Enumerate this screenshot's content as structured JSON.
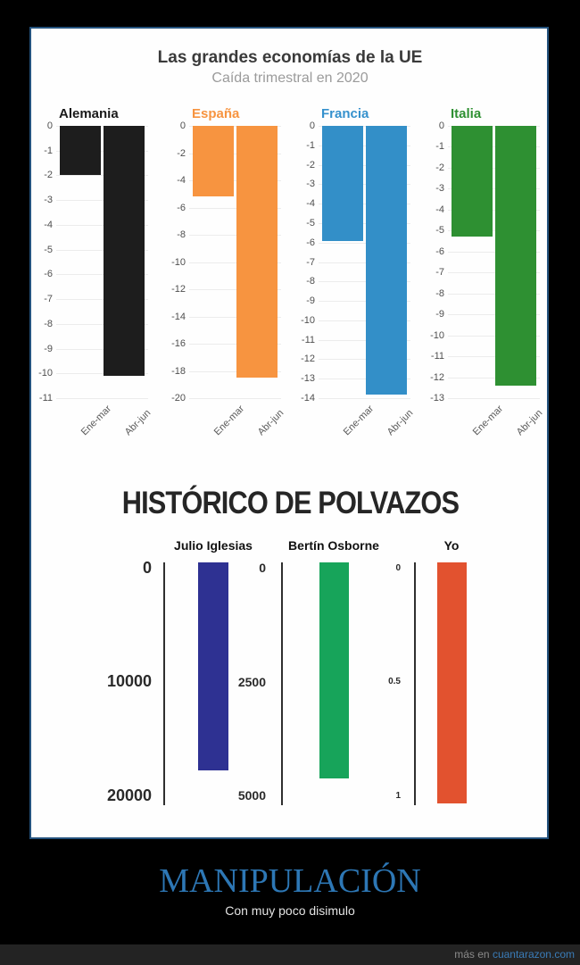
{
  "meme": {
    "title": "MANIPULACIÓN",
    "subtitle": "Con muy poco disimulo",
    "footer_prefix": "más en",
    "footer_site": "cuantarazon.com"
  },
  "colors": {
    "caption_blue": "#2d77b5",
    "link_blue": "#3a7cb8",
    "panel_border": "#24527d"
  },
  "chart_data": [
    {
      "type": "bar",
      "title": "Las grandes economías de la UE",
      "subtitle": "Caída trimestral en 2020",
      "categories": [
        "Ene-mar",
        "Abr-jun"
      ],
      "grid": true,
      "panels": [
        {
          "name": "Alemania",
          "color": "#1d1d1d",
          "label_color": "#1a1a1a",
          "axis_min": -11,
          "tick_step": 1,
          "values": [
            -2.0,
            -10.1
          ]
        },
        {
          "name": "España",
          "color": "#f79440",
          "label_color": "#f79440",
          "axis_min": -20,
          "tick_step": 2,
          "values": [
            -5.2,
            -18.5
          ]
        },
        {
          "name": "Francia",
          "color": "#338fc8",
          "label_color": "#3591cd",
          "axis_min": -14,
          "tick_step": 1,
          "values": [
            -5.9,
            -13.8
          ]
        },
        {
          "name": "Italia",
          "color": "#2e9032",
          "label_color": "#2e9032",
          "axis_min": -13,
          "tick_step": 1,
          "values": [
            -5.3,
            -12.4
          ]
        }
      ]
    },
    {
      "type": "bar",
      "title": "HISTÓRICO DE POLVAZOS",
      "panels": [
        {
          "name": "Julio Iglesias",
          "color": "#2e3192",
          "ticks": [
            "0",
            "10000",
            "20000"
          ],
          "axis_max": 20000,
          "value": 17700
        },
        {
          "name": "Bertín Osborne",
          "color": "#17a45a",
          "ticks": [
            "0",
            "2500",
            "5000"
          ],
          "axis_max": 5000,
          "value": 4600
        },
        {
          "name": "Yo",
          "color": "#e2522f",
          "ticks": [
            "0",
            "0.5",
            "1"
          ],
          "axis_max": 1,
          "value": 1.03
        }
      ]
    }
  ]
}
